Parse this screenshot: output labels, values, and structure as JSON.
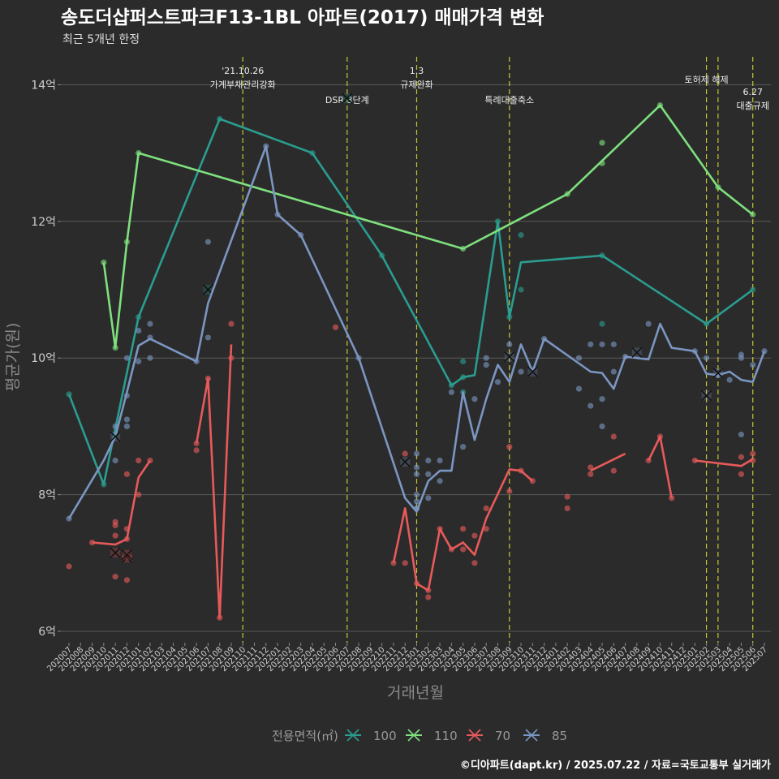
{
  "chart_data": {
    "type": "line",
    "title": "송도더샵퍼스트파크F13-1BL 아파트(2017) 매매가격 변화",
    "subtitle": "최근 5개년 한정",
    "xlabel": "거래년월",
    "ylabel": "평균가(원)",
    "caption": "©디아파트(dapt.kr) / 2025.07.22 / 자료=국토교통부 실거래가",
    "legend_title": "전용면적(㎡)",
    "legend_position": "bottom",
    "grid": true,
    "ylim": [
      5.8,
      14.5
    ],
    "yticks": [
      {
        "value": 6,
        "label": "6억"
      },
      {
        "value": 8,
        "label": "8억"
      },
      {
        "value": 10,
        "label": "10억"
      },
      {
        "value": 12,
        "label": "12억"
      },
      {
        "value": 14,
        "label": "14억"
      }
    ],
    "categories": [
      "202007",
      "202008",
      "202009",
      "202010",
      "202011",
      "202012",
      "202101",
      "202102",
      "202103",
      "202104",
      "202105",
      "202106",
      "202107",
      "202108",
      "202109",
      "202110",
      "202111",
      "202112",
      "202201",
      "202202",
      "202203",
      "202204",
      "202205",
      "202206",
      "202207",
      "202208",
      "202209",
      "202210",
      "202211",
      "202212",
      "202301",
      "202302",
      "202303",
      "202304",
      "202305",
      "202306",
      "202307",
      "202308",
      "202309",
      "202310",
      "202311",
      "202312",
      "202401",
      "202402",
      "202403",
      "202404",
      "202405",
      "202406",
      "202407",
      "202408",
      "202409",
      "202410",
      "202411",
      "202412",
      "202501",
      "202502",
      "202503",
      "202504",
      "202505",
      "202506",
      "202507"
    ],
    "events": [
      {
        "x": "202110",
        "label_lines": [
          "'21.10.26",
          "가계부채관리강화"
        ],
        "label_level": 0
      },
      {
        "x": "202207",
        "label_lines": [
          "DSR 3단계"
        ],
        "label_level": 2
      },
      {
        "x": "202301",
        "label_lines": [
          "1.3",
          "규제완화"
        ],
        "label_level": 0
      },
      {
        "x": "202309",
        "label_lines": [
          "특례대출축소"
        ],
        "label_level": 2
      },
      {
        "x": "202502",
        "label_lines": [
          "토허제 해제"
        ],
        "label_level": 1
      },
      {
        "x": "202503",
        "label_lines": [],
        "label_level": 0
      },
      {
        "x": "202506",
        "label_lines": [
          "6.27",
          "대출규제"
        ],
        "label_level": 2
      }
    ],
    "series": [
      {
        "name": "100",
        "color": "#2a9d8f",
        "line": [
          [
            "202007",
            9.47
          ],
          [
            "202010",
            8.15
          ],
          [
            "202101",
            10.6
          ],
          [
            "202108",
            13.5
          ],
          [
            "202204",
            13.0
          ],
          [
            "202210",
            11.5
          ],
          [
            "202304",
            9.6
          ],
          [
            "202305",
            9.72
          ],
          [
            "202306",
            9.75
          ],
          [
            "202308",
            12.0
          ],
          [
            "202309",
            10.6
          ],
          [
            "202310",
            11.4
          ],
          [
            "202405",
            11.5
          ],
          [
            "202502",
            10.5
          ],
          [
            "202506",
            11.0
          ]
        ],
        "points": [
          [
            "202007",
            9.47
          ],
          [
            "202010",
            8.15
          ],
          [
            "202101",
            10.6
          ],
          [
            "202108",
            13.5
          ],
          [
            "202204",
            13.0
          ],
          [
            "202210",
            11.5
          ],
          [
            "202304",
            9.6
          ],
          [
            "202305",
            9.72
          ],
          [
            "202305",
            9.5
          ],
          [
            "202305",
            9.95
          ],
          [
            "202308",
            12.0
          ],
          [
            "202309",
            10.6
          ],
          [
            "202310",
            11.0
          ],
          [
            "202310",
            11.8
          ],
          [
            "202405",
            10.5
          ],
          [
            "202405",
            11.5
          ],
          [
            "202502",
            10.5
          ],
          [
            "202506",
            11.0
          ]
        ],
        "cancelled": [
          [
            "202107",
            11.0
          ],
          [
            "202207",
            13.8
          ]
        ]
      },
      {
        "name": "110",
        "color": "#7ee07e",
        "line": [
          [
            "202010",
            11.4
          ],
          [
            "202011",
            10.15
          ],
          [
            "202012",
            11.7
          ],
          [
            "202101",
            13.0
          ],
          [
            "202305",
            11.6
          ],
          [
            "202402",
            12.4
          ],
          [
            "202410",
            13.7
          ],
          [
            "202503",
            12.5
          ],
          [
            "202506",
            12.1
          ]
        ],
        "points": [
          [
            "202010",
            11.4
          ],
          [
            "202011",
            10.15
          ],
          [
            "202012",
            11.7
          ],
          [
            "202101",
            13.0
          ],
          [
            "202305",
            11.6
          ],
          [
            "202402",
            12.4
          ],
          [
            "202405",
            13.15
          ],
          [
            "202405",
            12.85
          ],
          [
            "202410",
            13.7
          ],
          [
            "202503",
            12.5
          ],
          [
            "202506",
            12.1
          ]
        ],
        "cancelled": []
      },
      {
        "name": "70",
        "color": "#e85a5a",
        "segments": [
          [
            [
              "202009",
              7.3
            ],
            [
              "202011",
              7.27
            ],
            [
              "202012",
              7.35
            ],
            [
              "202101",
              8.25
            ],
            [
              "202102",
              8.5
            ]
          ],
          [
            [
              "202106",
              8.75
            ],
            [
              "202107",
              9.7
            ],
            [
              "202108",
              6.2
            ],
            [
              "202109",
              10.2
            ]
          ],
          [
            [
              "202211",
              7.0
            ],
            [
              "202212",
              7.8
            ],
            [
              "202301",
              6.7
            ],
            [
              "202302",
              6.6
            ],
            [
              "202303",
              7.5
            ],
            [
              "202304",
              7.2
            ],
            [
              "202305",
              7.3
            ],
            [
              "202306",
              7.12
            ],
            [
              "202307",
              7.65
            ],
            [
              "202309",
              8.37
            ],
            [
              "202310",
              8.35
            ],
            [
              "202311",
              8.2
            ]
          ],
          [
            [
              "202404",
              8.35
            ],
            [
              "202407",
              8.6
            ]
          ],
          [
            [
              "202409",
              8.5
            ],
            [
              "202410",
              8.85
            ],
            [
              "202411",
              7.95
            ]
          ],
          [
            [
              "202501",
              8.5
            ],
            [
              "202505",
              8.42
            ],
            [
              "202506",
              8.52
            ]
          ]
        ],
        "points": [
          [
            "202007",
            6.95
          ],
          [
            "202009",
            7.3
          ],
          [
            "202011",
            7.4
          ],
          [
            "202011",
            7.55
          ],
          [
            "202011",
            7.6
          ],
          [
            "202011",
            6.8
          ],
          [
            "202012",
            7.35
          ],
          [
            "202012",
            7.5
          ],
          [
            "202012",
            8.3
          ],
          [
            "202012",
            6.75
          ],
          [
            "202101",
            8.0
          ],
          [
            "202101",
            8.5
          ],
          [
            "202102",
            8.5
          ],
          [
            "202106",
            8.75
          ],
          [
            "202106",
            8.65
          ],
          [
            "202107",
            9.7
          ],
          [
            "202108",
            6.2
          ],
          [
            "202109",
            10.0
          ],
          [
            "202109",
            10.5
          ],
          [
            "202206",
            10.45
          ],
          [
            "202211",
            7.0
          ],
          [
            "202212",
            7.0
          ],
          [
            "202212",
            8.6
          ],
          [
            "202301",
            6.7
          ],
          [
            "202302",
            6.5
          ],
          [
            "202302",
            6.6
          ],
          [
            "202303",
            7.5
          ],
          [
            "202304",
            7.2
          ],
          [
            "202305",
            7.2
          ],
          [
            "202305",
            7.5
          ],
          [
            "202306",
            7.0
          ],
          [
            "202306",
            7.4
          ],
          [
            "202307",
            7.5
          ],
          [
            "202307",
            7.8
          ],
          [
            "202309",
            8.7
          ],
          [
            "202309",
            8.05
          ],
          [
            "202310",
            8.35
          ],
          [
            "202311",
            8.2
          ],
          [
            "202402",
            7.8
          ],
          [
            "202402",
            7.97
          ],
          [
            "202404",
            8.3
          ],
          [
            "202404",
            8.4
          ],
          [
            "202406",
            8.85
          ],
          [
            "202406",
            8.35
          ],
          [
            "202409",
            8.5
          ],
          [
            "202410",
            8.85
          ],
          [
            "202411",
            7.95
          ],
          [
            "202501",
            8.5
          ],
          [
            "202505",
            8.3
          ],
          [
            "202505",
            8.55
          ],
          [
            "202506",
            8.5
          ],
          [
            "202506",
            8.6
          ]
        ],
        "cancelled": [
          [
            "202011",
            7.15
          ],
          [
            "202012",
            7.08
          ],
          [
            "202012",
            7.12
          ]
        ]
      },
      {
        "name": "85",
        "color": "#7b96c2",
        "line": [
          [
            "202007",
            7.65
          ],
          [
            "202010",
            8.5
          ],
          [
            "202011",
            8.85
          ],
          [
            "202012",
            9.5
          ],
          [
            "202101",
            10.18
          ],
          [
            "202102",
            10.28
          ],
          [
            "202106",
            9.95
          ],
          [
            "202107",
            10.8
          ],
          [
            "202112",
            13.1
          ],
          [
            "202201",
            12.1
          ],
          [
            "202203",
            11.8
          ],
          [
            "202208",
            10.0
          ],
          [
            "202212",
            7.95
          ],
          [
            "202301",
            7.75
          ],
          [
            "202302",
            8.2
          ],
          [
            "202303",
            8.35
          ],
          [
            "202304",
            8.35
          ],
          [
            "202305",
            9.5
          ],
          [
            "202306",
            8.8
          ],
          [
            "202307",
            9.4
          ],
          [
            "202308",
            9.9
          ],
          [
            "202309",
            9.65
          ],
          [
            "202310",
            10.2
          ],
          [
            "202311",
            9.8
          ],
          [
            "202312",
            10.28
          ],
          [
            "202404",
            9.8
          ],
          [
            "202405",
            9.78
          ],
          [
            "202406",
            9.55
          ],
          [
            "202407",
            10.02
          ],
          [
            "202408",
            10.0
          ],
          [
            "202409",
            9.98
          ],
          [
            "202410",
            10.5
          ],
          [
            "202411",
            10.15
          ],
          [
            "202501",
            10.1
          ],
          [
            "202502",
            9.77
          ],
          [
            "202503",
            9.75
          ],
          [
            "202504",
            9.8
          ],
          [
            "202505",
            9.68
          ],
          [
            "202506",
            9.65
          ],
          [
            "202507",
            10.1
          ]
        ],
        "points": [
          [
            "202007",
            7.65
          ],
          [
            "202011",
            9.0
          ],
          [
            "202011",
            8.5
          ],
          [
            "202012",
            9.45
          ],
          [
            "202012",
            9.0
          ],
          [
            "202012",
            9.1
          ],
          [
            "202012",
            10.0
          ],
          [
            "202101",
            10.4
          ],
          [
            "202101",
            9.95
          ],
          [
            "202102",
            10.5
          ],
          [
            "202102",
            10.3
          ],
          [
            "202102",
            10.0
          ],
          [
            "202106",
            9.95
          ],
          [
            "202107",
            11.7
          ],
          [
            "202107",
            10.3
          ],
          [
            "202112",
            13.1
          ],
          [
            "202201",
            12.1
          ],
          [
            "202203",
            11.8
          ],
          [
            "202208",
            10.0
          ],
          [
            "202301",
            7.8
          ],
          [
            "202301",
            8.0
          ],
          [
            "202301",
            8.6
          ],
          [
            "202301",
            8.4
          ],
          [
            "202301",
            8.3
          ],
          [
            "202301",
            7.9
          ],
          [
            "202301",
            7.8
          ],
          [
            "202302",
            8.5
          ],
          [
            "202302",
            8.3
          ],
          [
            "202302",
            7.95
          ],
          [
            "202303",
            8.2
          ],
          [
            "202303",
            8.5
          ],
          [
            "202304",
            9.5
          ],
          [
            "202305",
            8.7
          ],
          [
            "202306",
            9.4
          ],
          [
            "202307",
            9.9
          ],
          [
            "202307",
            10.0
          ],
          [
            "202308",
            9.65
          ],
          [
            "202309",
            10.2
          ],
          [
            "202310",
            9.8
          ],
          [
            "202312",
            10.28
          ],
          [
            "202403",
            9.55
          ],
          [
            "202403",
            10.0
          ],
          [
            "202404",
            9.3
          ],
          [
            "202404",
            10.2
          ],
          [
            "202405",
            10.2
          ],
          [
            "202405",
            9.4
          ],
          [
            "202405",
            9.0
          ],
          [
            "202406",
            10.2
          ],
          [
            "202406",
            9.8
          ],
          [
            "202407",
            10.02
          ],
          [
            "202409",
            10.5
          ],
          [
            "202501",
            10.1
          ],
          [
            "202502",
            10.0
          ],
          [
            "202503",
            9.75
          ],
          [
            "202504",
            9.68
          ],
          [
            "202505",
            10.05
          ],
          [
            "202505",
            10.0
          ],
          [
            "202505",
            8.88
          ],
          [
            "202506",
            9.9
          ],
          [
            "202507",
            10.1
          ]
        ],
        "cancelled": [
          [
            "202011",
            8.85
          ],
          [
            "202212",
            8.48
          ],
          [
            "202309",
            10.02
          ],
          [
            "202311",
            9.8
          ],
          [
            "202408",
            10.08
          ],
          [
            "202502",
            9.45
          ],
          [
            "202503",
            9.78
          ]
        ]
      }
    ]
  }
}
